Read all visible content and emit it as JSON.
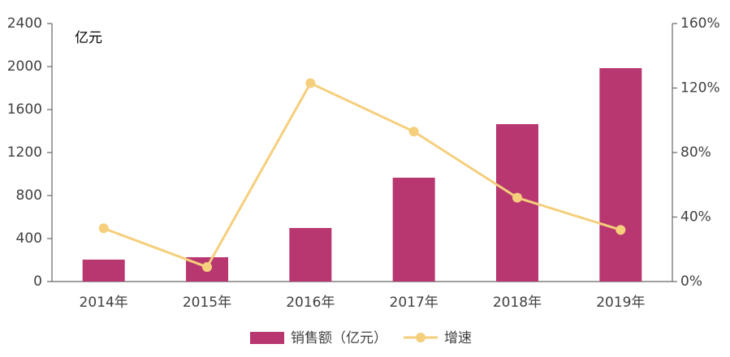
{
  "chart_data": {
    "type": "combo",
    "y_unit": "亿元",
    "categories": [
      "2014年",
      "2015年",
      "2016年",
      "2017年",
      "2018年",
      "2019年"
    ],
    "series": [
      {
        "name": "销售额（亿元）",
        "type": "bar",
        "color": "#b83770",
        "values": [
          204,
          226,
          498,
          966,
          1464,
          1985
        ]
      },
      {
        "name": "增速",
        "type": "line",
        "axis": "y2",
        "color": "#f5cf7c",
        "values": [
          33,
          9,
          123,
          93,
          52,
          32
        ]
      }
    ],
    "ylim": [
      0,
      2400
    ],
    "yticks": [
      0,
      400,
      800,
      1200,
      1600,
      2000,
      2400
    ],
    "y2lim": [
      0,
      160
    ],
    "y2ticks": [
      {
        "value": 0,
        "label": "0%"
      },
      {
        "value": 40,
        "label": "40%"
      },
      {
        "value": 80,
        "label": "80%"
      },
      {
        "value": 120,
        "label": "120%"
      },
      {
        "value": 160,
        "label": "160%"
      }
    ],
    "legend": "bottom"
  }
}
